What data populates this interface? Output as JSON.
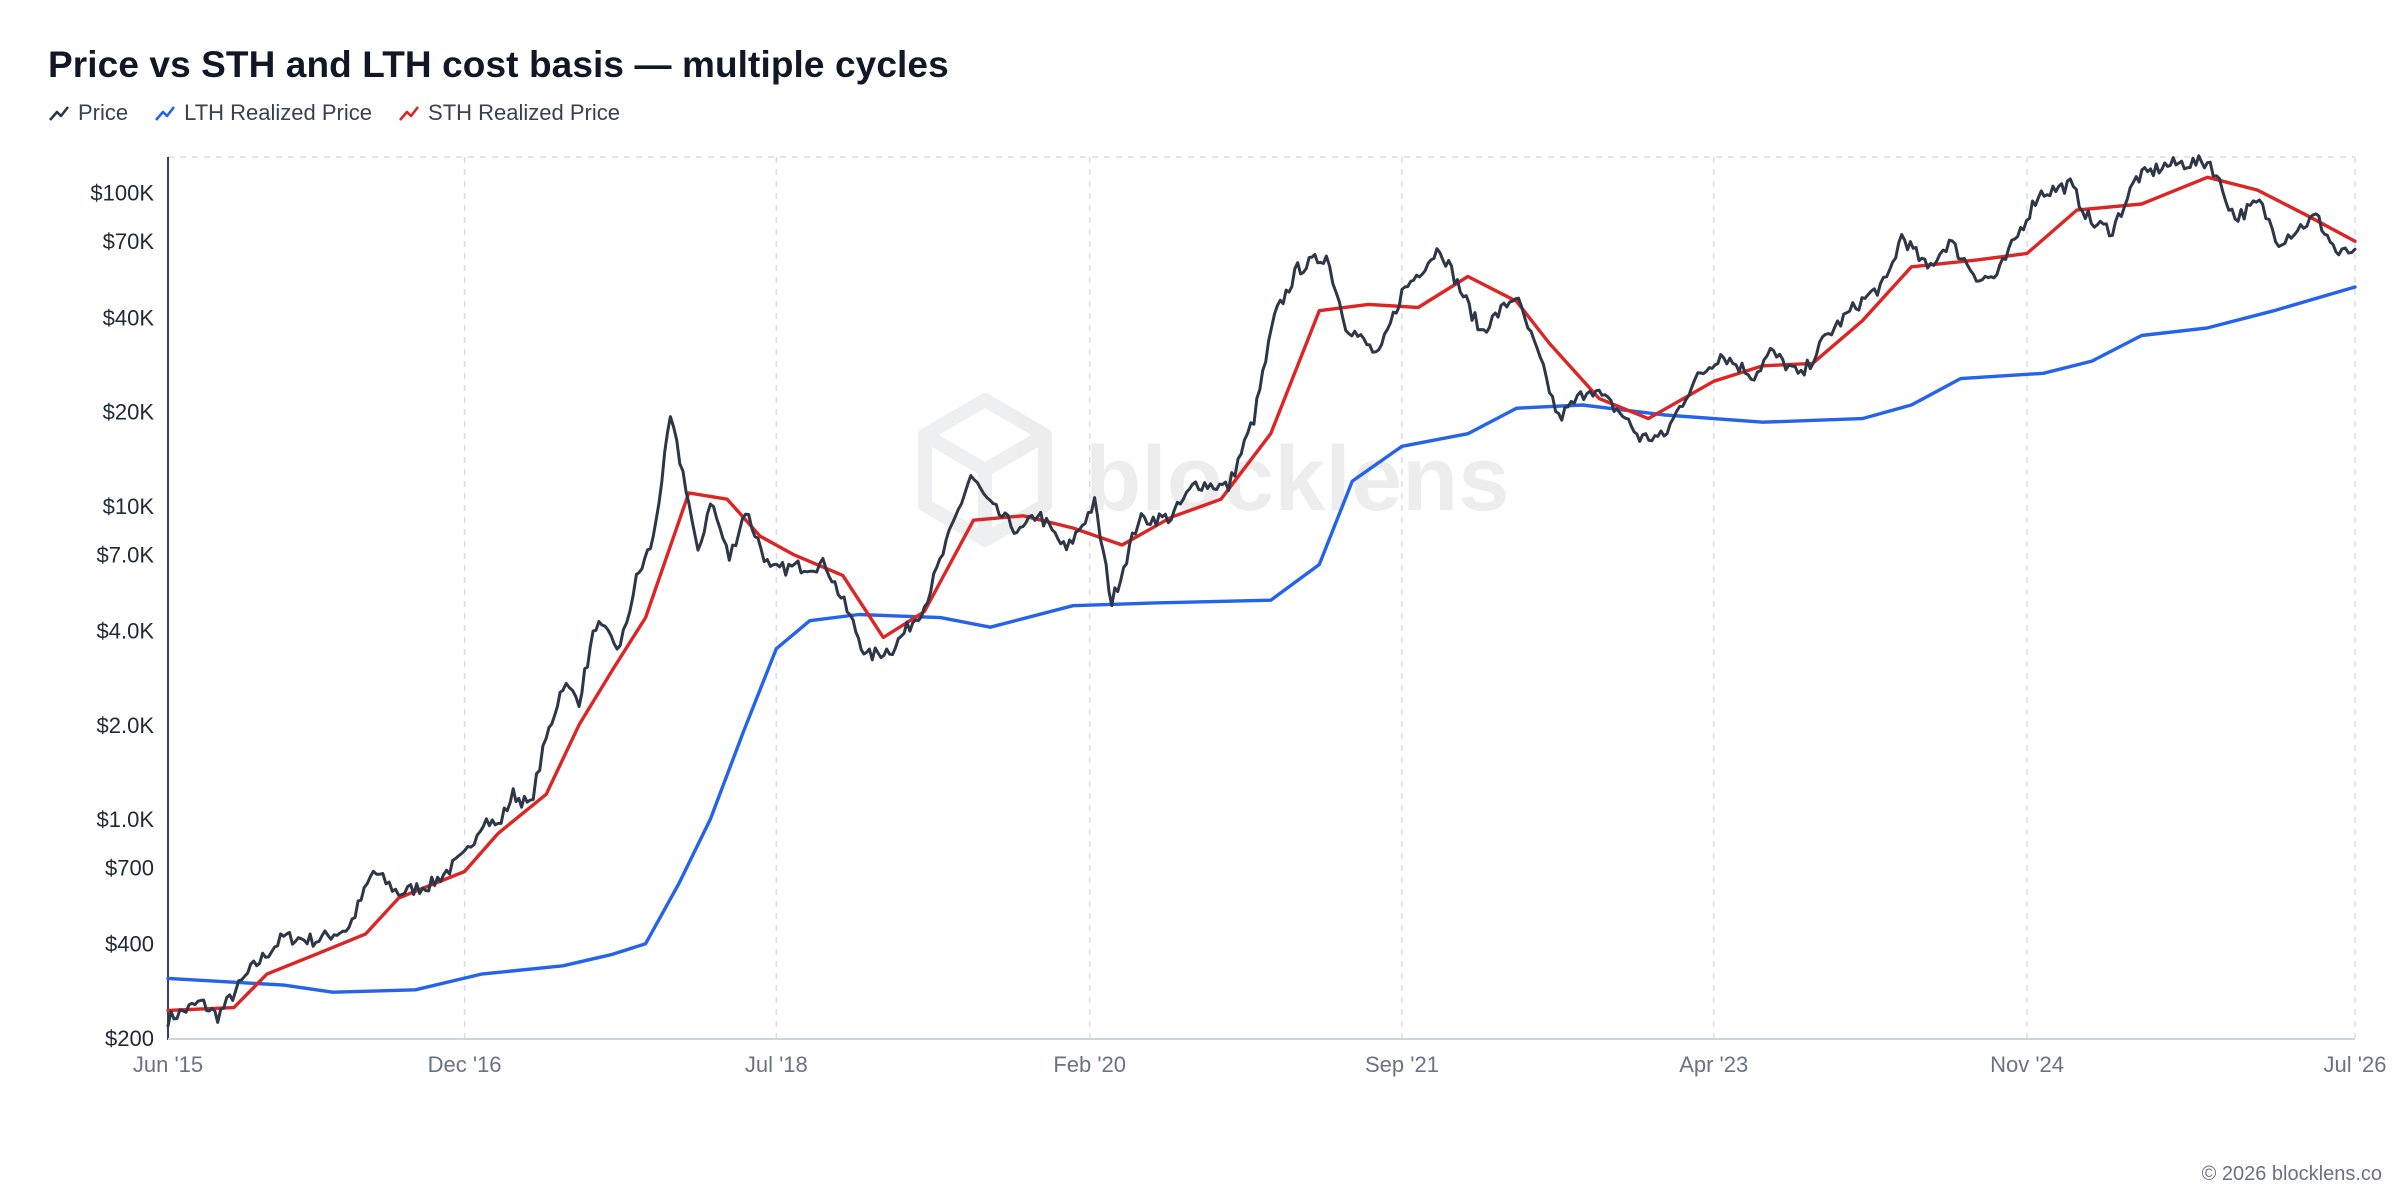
{
  "title": "Price vs STH and LTH cost basis — multiple cycles",
  "legend": [
    {
      "label": "Price",
      "color": "#2d3748"
    },
    {
      "label": "LTH Realized Price",
      "color": "#2563eb"
    },
    {
      "label": "STH Realized Price",
      "color": "#dc2626"
    }
  ],
  "watermark": "blocklens",
  "footer": "© 2026 blocklens.co",
  "chart_data": {
    "type": "line",
    "y_scale": "log",
    "ylim": [
      200,
      130000
    ],
    "xlim": [
      "2015-06-01",
      "2026-07-01"
    ],
    "grid": {
      "vertical": true,
      "horizontal": false
    },
    "legend_position": "top-left",
    "y_ticks": [
      {
        "value": 200,
        "label": "$200"
      },
      {
        "value": 400,
        "label": "$400"
      },
      {
        "value": 700,
        "label": "$700"
      },
      {
        "value": 1000,
        "label": "$1.0K"
      },
      {
        "value": 2000,
        "label": "$2.0K"
      },
      {
        "value": 4000,
        "label": "$4.0K"
      },
      {
        "value": 7000,
        "label": "$7.0K"
      },
      {
        "value": 10000,
        "label": "$10K"
      },
      {
        "value": 20000,
        "label": "$20K"
      },
      {
        "value": 40000,
        "label": "$40K"
      },
      {
        "value": 70000,
        "label": "$70K"
      },
      {
        "value": 100000,
        "label": "$100K"
      }
    ],
    "x_ticks": [
      {
        "date": "2015-06-01",
        "label": "Jun '15"
      },
      {
        "date": "2016-12-01",
        "label": "Dec '16"
      },
      {
        "date": "2018-07-01",
        "label": "Jul '18"
      },
      {
        "date": "2020-02-01",
        "label": "Feb '20"
      },
      {
        "date": "2021-09-01",
        "label": "Sep '21"
      },
      {
        "date": "2023-04-01",
        "label": "Apr '23"
      },
      {
        "date": "2024-11-01",
        "label": "Nov '24"
      },
      {
        "date": "2026-07-01",
        "label": "Jul '26"
      }
    ],
    "series": [
      {
        "name": "Price",
        "color": "#2d3748",
        "points": [
          [
            "2015-06-01",
            230
          ],
          [
            "2015-08-01",
            260
          ],
          [
            "2015-09-01",
            235
          ],
          [
            "2015-11-01",
            330
          ],
          [
            "2016-01-01",
            420
          ],
          [
            "2016-03-01",
            410
          ],
          [
            "2016-05-01",
            450
          ],
          [
            "2016-06-15",
            680
          ],
          [
            "2016-08-01",
            580
          ],
          [
            "2016-10-01",
            620
          ],
          [
            "2016-12-01",
            760
          ],
          [
            "2017-01-05",
            1000
          ],
          [
            "2017-02-01",
            950
          ],
          [
            "2017-03-01",
            1200
          ],
          [
            "2017-04-01",
            1100
          ],
          [
            "2017-05-01",
            1800
          ],
          [
            "2017-06-01",
            2700
          ],
          [
            "2017-07-01",
            2400
          ],
          [
            "2017-08-01",
            4200
          ],
          [
            "2017-09-15",
            3500
          ],
          [
            "2017-10-15",
            5800
          ],
          [
            "2017-11-15",
            7800
          ],
          [
            "2017-12-17",
            19000
          ],
          [
            "2018-01-15",
            11500
          ],
          [
            "2018-02-06",
            6900
          ],
          [
            "2018-03-01",
            10500
          ],
          [
            "2018-04-05",
            6800
          ],
          [
            "2018-05-05",
            9700
          ],
          [
            "2018-06-20",
            6200
          ],
          [
            "2018-08-10",
            6400
          ],
          [
            "2018-10-01",
            6500
          ],
          [
            "2018-11-20",
            4200
          ],
          [
            "2018-12-15",
            3300
          ],
          [
            "2019-02-01",
            3500
          ],
          [
            "2019-04-01",
            4800
          ],
          [
            "2019-06-26",
            12500
          ],
          [
            "2019-08-01",
            10000
          ],
          [
            "2019-09-25",
            8200
          ],
          [
            "2019-10-28",
            9500
          ],
          [
            "2019-12-20",
            7200
          ],
          [
            "2020-02-10",
            10200
          ],
          [
            "2020-03-13",
            4900
          ],
          [
            "2020-05-01",
            9000
          ],
          [
            "2020-07-01",
            9200
          ],
          [
            "2020-08-15",
            11800
          ],
          [
            "2020-10-15",
            11500
          ],
          [
            "2020-12-01",
            19000
          ],
          [
            "2021-01-08",
            40000
          ],
          [
            "2021-02-20",
            57000
          ],
          [
            "2021-04-14",
            63000
          ],
          [
            "2021-05-20",
            38000
          ],
          [
            "2021-07-20",
            30000
          ],
          [
            "2021-09-01",
            48000
          ],
          [
            "2021-11-10",
            67000
          ],
          [
            "2022-01-25",
            36000
          ],
          [
            "2022-03-30",
            47000
          ],
          [
            "2022-05-15",
            29000
          ],
          [
            "2022-06-18",
            19000
          ],
          [
            "2022-08-15",
            24000
          ],
          [
            "2022-10-15",
            19500
          ],
          [
            "2022-11-15",
            16500
          ],
          [
            "2022-12-30",
            16600
          ],
          [
            "2023-02-20",
            24500
          ],
          [
            "2023-04-14",
            30500
          ],
          [
            "2023-06-15",
            26000
          ],
          [
            "2023-07-15",
            31000
          ],
          [
            "2023-09-10",
            25800
          ],
          [
            "2023-10-25",
            34500
          ],
          [
            "2023-12-20",
            43500
          ],
          [
            "2024-02-15",
            52000
          ],
          [
            "2024-03-14",
            73000
          ],
          [
            "2024-05-01",
            57000
          ],
          [
            "2024-06-10",
            70000
          ],
          [
            "2024-08-05",
            53000
          ],
          [
            "2024-09-06",
            54000
          ],
          [
            "2024-11-22",
            99000
          ],
          [
            "2025-01-20",
            106000
          ],
          [
            "2025-02-28",
            80000
          ],
          [
            "2025-04-08",
            76000
          ],
          [
            "2025-05-22",
            111000
          ],
          [
            "2025-07-14",
            122000
          ],
          [
            "2025-08-14",
            124000
          ],
          [
            "2025-10-06",
            125000
          ],
          [
            "2025-11-21",
            83000
          ],
          [
            "2026-01-05",
            93000
          ],
          [
            "2026-02-10",
            70000
          ],
          [
            "2026-04-20",
            84000
          ],
          [
            "2026-06-01",
            63000
          ],
          [
            "2026-07-01",
            66000
          ]
        ]
      },
      {
        "name": "LTH Realized Price",
        "color": "#2563eb",
        "points": [
          [
            "2015-06-01",
            310
          ],
          [
            "2016-01-01",
            295
          ],
          [
            "2016-04-01",
            280
          ],
          [
            "2016-09-01",
            285
          ],
          [
            "2017-01-01",
            320
          ],
          [
            "2017-06-01",
            340
          ],
          [
            "2017-09-01",
            370
          ],
          [
            "2017-11-01",
            400
          ],
          [
            "2018-01-01",
            620
          ],
          [
            "2018-03-01",
            1000
          ],
          [
            "2018-05-01",
            1900
          ],
          [
            "2018-07-01",
            3500
          ],
          [
            "2018-09-01",
            4300
          ],
          [
            "2018-12-01",
            4500
          ],
          [
            "2019-05-01",
            4400
          ],
          [
            "2019-08-01",
            4100
          ],
          [
            "2020-01-01",
            4800
          ],
          [
            "2020-06-01",
            4900
          ],
          [
            "2021-01-01",
            5000
          ],
          [
            "2021-04-01",
            6500
          ],
          [
            "2021-06-01",
            12000
          ],
          [
            "2021-09-01",
            15500
          ],
          [
            "2022-01-01",
            17000
          ],
          [
            "2022-04-01",
            20500
          ],
          [
            "2022-08-01",
            21000
          ],
          [
            "2023-01-01",
            19500
          ],
          [
            "2023-07-01",
            18500
          ],
          [
            "2024-01-01",
            19000
          ],
          [
            "2024-04-01",
            21000
          ],
          [
            "2024-07-01",
            25500
          ],
          [
            "2024-12-01",
            26500
          ],
          [
            "2025-03-01",
            29000
          ],
          [
            "2025-06-01",
            35000
          ],
          [
            "2025-10-01",
            37000
          ],
          [
            "2026-02-01",
            42000
          ],
          [
            "2026-07-01",
            50000
          ]
        ]
      },
      {
        "name": "STH Realized Price",
        "color": "#dc2626",
        "points": [
          [
            "2015-06-01",
            245
          ],
          [
            "2015-10-01",
            250
          ],
          [
            "2015-12-01",
            320
          ],
          [
            "2016-03-01",
            370
          ],
          [
            "2016-06-01",
            430
          ],
          [
            "2016-08-01",
            560
          ],
          [
            "2016-12-01",
            680
          ],
          [
            "2017-02-01",
            900
          ],
          [
            "2017-05-01",
            1200
          ],
          [
            "2017-07-01",
            2000
          ],
          [
            "2017-09-01",
            3000
          ],
          [
            "2017-11-01",
            4400
          ],
          [
            "2018-01-20",
            11000
          ],
          [
            "2018-04-01",
            10500
          ],
          [
            "2018-06-01",
            8000
          ],
          [
            "2018-08-01",
            7000
          ],
          [
            "2018-11-01",
            6000
          ],
          [
            "2019-01-15",
            3800
          ],
          [
            "2019-04-01",
            4600
          ],
          [
            "2019-07-01",
            9000
          ],
          [
            "2019-10-01",
            9300
          ],
          [
            "2020-01-01",
            8500
          ],
          [
            "2020-04-01",
            7500
          ],
          [
            "2020-07-01",
            9200
          ],
          [
            "2020-10-01",
            10500
          ],
          [
            "2021-01-01",
            17000
          ],
          [
            "2021-04-01",
            42000
          ],
          [
            "2021-07-01",
            44000
          ],
          [
            "2021-10-01",
            43000
          ],
          [
            "2022-01-01",
            54000
          ],
          [
            "2022-04-01",
            45000
          ],
          [
            "2022-06-01",
            33000
          ],
          [
            "2022-09-01",
            22000
          ],
          [
            "2022-12-01",
            19000
          ],
          [
            "2023-04-01",
            25000
          ],
          [
            "2023-07-01",
            28000
          ],
          [
            "2023-10-01",
            28500
          ],
          [
            "2024-01-01",
            39000
          ],
          [
            "2024-04-01",
            58000
          ],
          [
            "2024-08-01",
            61000
          ],
          [
            "2024-11-01",
            64000
          ],
          [
            "2025-02-01",
            88000
          ],
          [
            "2025-06-01",
            92000
          ],
          [
            "2025-10-01",
            112000
          ],
          [
            "2026-01-01",
            102000
          ],
          [
            "2026-04-01",
            85000
          ],
          [
            "2026-07-01",
            70000
          ]
        ]
      }
    ]
  }
}
